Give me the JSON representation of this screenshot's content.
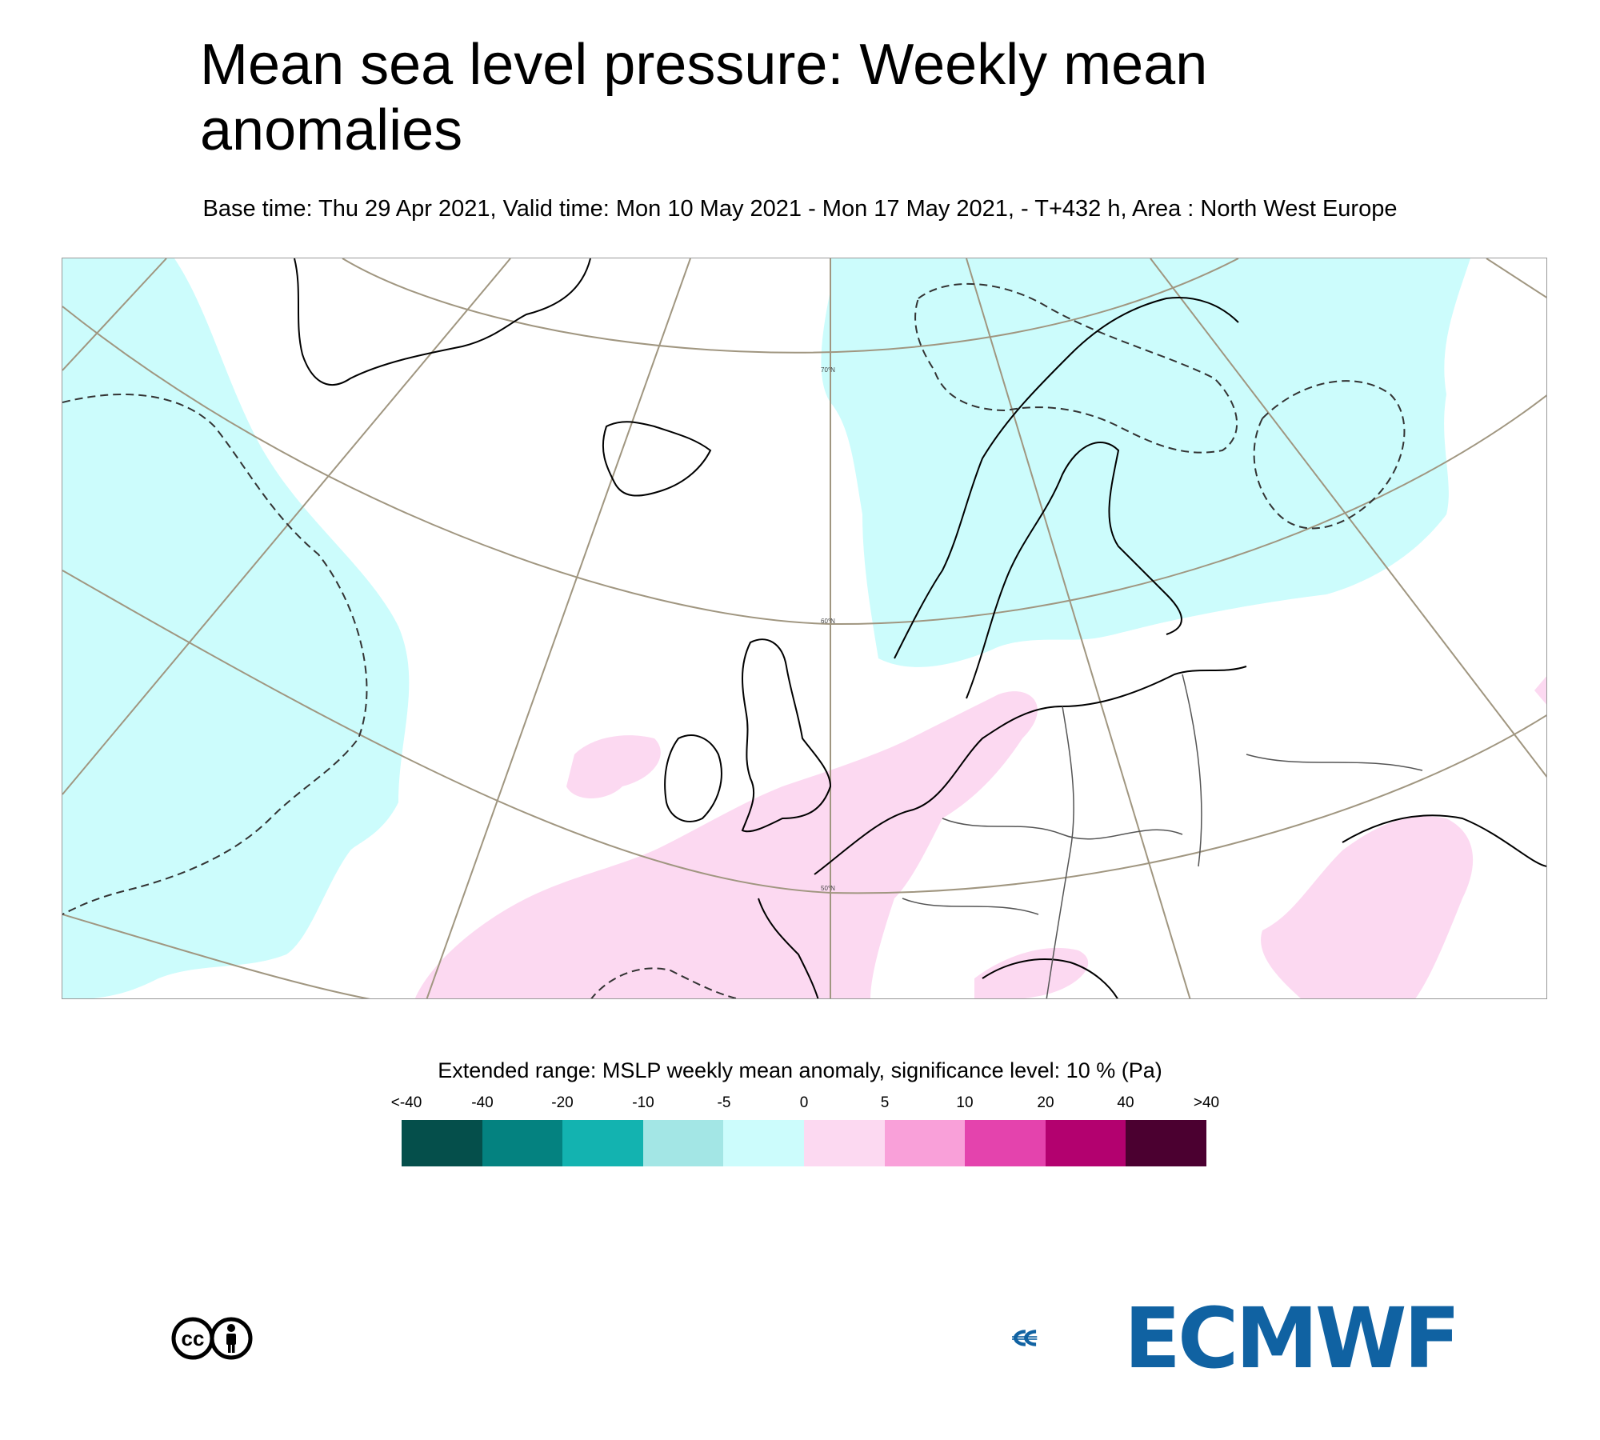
{
  "header": {
    "title": "Mean sea level pressure: Weekly mean anomalies",
    "subtitle": "Base time: Thu 29 Apr 2021, Valid time: Mon 10 May 2021 - Mon 17 May 2021, - T+432 h, Area : North West Europe"
  },
  "map": {
    "region": "North West Europe",
    "lat_labels": [
      "70°N",
      "60°N",
      "50°N"
    ],
    "colors": {
      "negative_anomaly": "#ccfcfc",
      "positive_anomaly": "#fcd9f1",
      "graticule": "#a09680",
      "coastline": "#000000",
      "border": "#555555"
    }
  },
  "legend": {
    "title": "Extended range: MSLP weekly mean anomaly, significance level: 10 % (Pa)",
    "tick_labels": [
      "<-40",
      "-40",
      "-20",
      "-10",
      "-5",
      "0",
      "5",
      "10",
      "20",
      "40",
      ">40"
    ],
    "colors": [
      "#054f4b",
      "#048280",
      "#13b3b0",
      "#a3e6e5",
      "#ccfcfc",
      "#fcd9f1",
      "#f9a0d9",
      "#e443ad",
      "#b3016f",
      "#4b0030"
    ]
  },
  "footer": {
    "license_icon": "cc-by-icon",
    "license_text": "cc",
    "logo_text": "ECMWF",
    "logo_icon": "ecmwf-logo-icon",
    "logo_color": "#1062a2"
  }
}
